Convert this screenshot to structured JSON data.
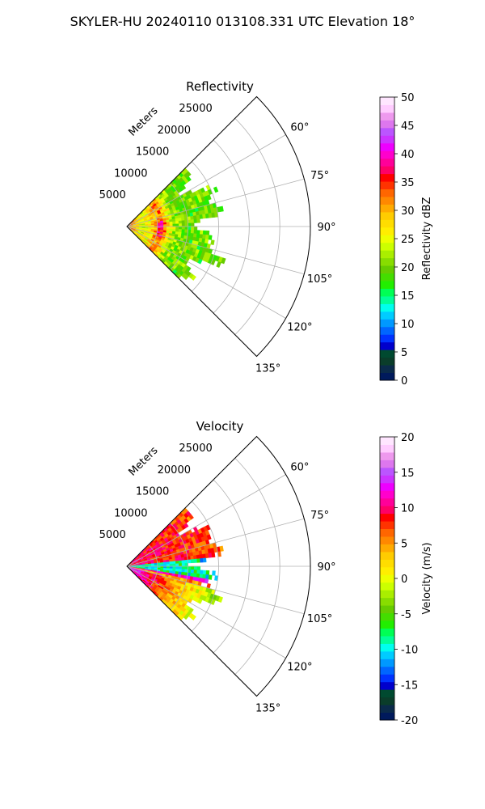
{
  "figure": {
    "title": "SKYLER-HU  20240110  013108.331 UTC Elevation 18°"
  },
  "chart_data": [
    {
      "type": "heatmap",
      "subtype": "polar-sector",
      "title": "Reflectivity",
      "radial_axis_label": "Meters",
      "radial_ticks": [
        "5000",
        "10000",
        "15000",
        "20000",
        "25000"
      ],
      "radial_tick_values": [
        5000,
        10000,
        15000,
        20000,
        25000
      ],
      "range_max": 30000,
      "angle_ticks": [
        "60°",
        "75°",
        "90°",
        "105°",
        "120°",
        "135°"
      ],
      "angle_tick_values": [
        60,
        75,
        90,
        105,
        120,
        135
      ],
      "angle_range": [
        45,
        135
      ],
      "data_extent_max_m": 18000,
      "colorbar": {
        "label": "Reflectivity dBZ",
        "range": [
          0,
          50
        ],
        "tick_labels": [
          "0",
          "5",
          "10",
          "15",
          "20",
          "25",
          "30",
          "35",
          "40",
          "45",
          "50"
        ],
        "tick_values": [
          0,
          5,
          10,
          15,
          20,
          25,
          30,
          35,
          40,
          45,
          50
        ],
        "colors": [
          "#001a5c",
          "#0a2a4a",
          "#0a3d2a",
          "#004a30",
          "#0000cc",
          "#0033ff",
          "#0066ff",
          "#0099ff",
          "#00ccff",
          "#00ffee",
          "#00ff99",
          "#00ff55",
          "#22ee00",
          "#44dd00",
          "#66cc00",
          "#88dd00",
          "#aaee00",
          "#ccff00",
          "#eeff00",
          "#ffee00",
          "#ffdd00",
          "#ffcc00",
          "#ffaa00",
          "#ff8800",
          "#ff6600",
          "#ff3300",
          "#ff0000",
          "#ff0066",
          "#ff0099",
          "#ff00cc",
          "#ee00ff",
          "#cc33ff",
          "#bb55ff",
          "#dd77ee",
          "#ee99ee",
          "#ffccff",
          "#ffe6ff"
        ]
      }
    },
    {
      "type": "heatmap",
      "subtype": "polar-sector",
      "title": "Velocity",
      "radial_axis_label": "Meters",
      "radial_ticks": [
        "5000",
        "10000",
        "15000",
        "20000",
        "25000"
      ],
      "radial_tick_values": [
        5000,
        10000,
        15000,
        20000,
        25000
      ],
      "range_max": 30000,
      "angle_ticks": [
        "60°",
        "75°",
        "90°",
        "105°",
        "120°",
        "135°"
      ],
      "angle_tick_values": [
        60,
        75,
        90,
        105,
        120,
        135
      ],
      "angle_range": [
        45,
        135
      ],
      "data_extent_max_m": 18000,
      "colorbar": {
        "label": "Velocity (m/s)",
        "range": [
          -20,
          20
        ],
        "tick_labels": [
          "-20",
          "-15",
          "-10",
          "-5",
          "0",
          "5",
          "10",
          "15",
          "20"
        ],
        "tick_values": [
          -20,
          -15,
          -10,
          -5,
          0,
          5,
          10,
          15,
          20
        ],
        "colors": [
          "#001a5c",
          "#0a2a4a",
          "#0a3d2a",
          "#004a30",
          "#0000cc",
          "#0033ff",
          "#0066ff",
          "#0099ff",
          "#00ccff",
          "#00ffee",
          "#00ff99",
          "#00ff55",
          "#22ee00",
          "#44dd00",
          "#66cc00",
          "#88dd00",
          "#aaee00",
          "#ccff00",
          "#eeff00",
          "#ffee00",
          "#ffdd00",
          "#ffcc00",
          "#ffaa00",
          "#ff8800",
          "#ff6600",
          "#ff3300",
          "#ff0000",
          "#ff0066",
          "#ff0099",
          "#ff00cc",
          "#ee00ff",
          "#cc33ff",
          "#bb55ff",
          "#dd77ee",
          "#ee99ee",
          "#ffccff",
          "#ffe6ff"
        ]
      }
    }
  ]
}
